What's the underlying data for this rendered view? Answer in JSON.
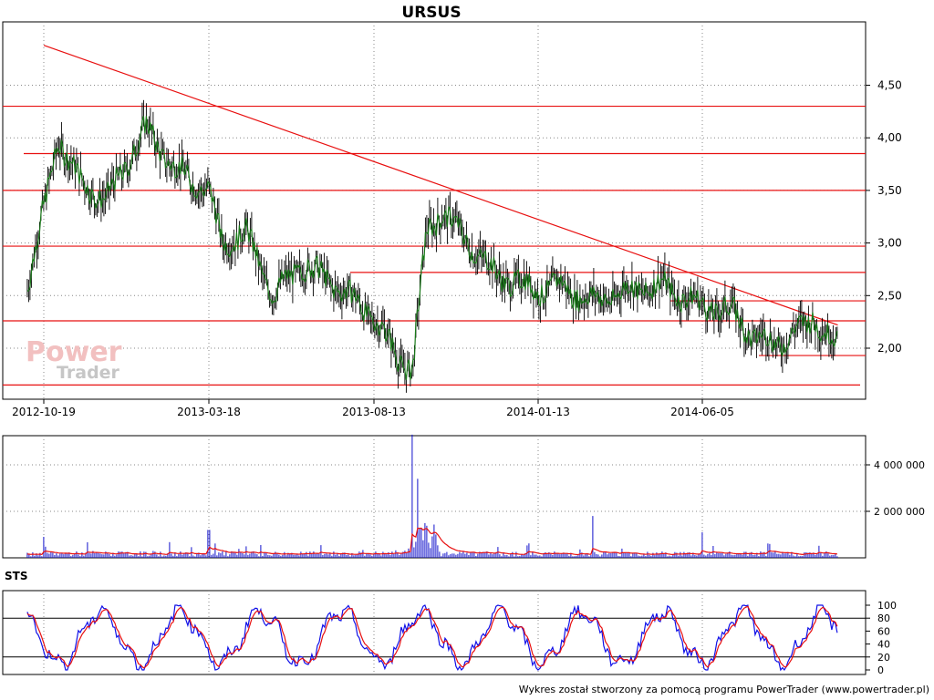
{
  "chart_data": [
    {
      "type": "line",
      "title": "URSUS",
      "x_ticks": [
        "2012-10-19",
        "2013-03-18",
        "2013-08-13",
        "2014-01-13",
        "2014-06-05"
      ],
      "y_ticks": [
        "4,50",
        "4,00",
        "3,50",
        "3,00",
        "2,50",
        "2,00"
      ],
      "ylim": [
        1.6,
        4.95
      ],
      "grid": true,
      "series": [
        {
          "x": [
            "2012-10-04",
            "2012-10-19",
            "2012-11-01",
            "2012-11-20",
            "2012-12-15",
            "2013-01-20",
            "2013-02-15",
            "2013-03-18",
            "2013-03-30",
            "2013-04-20",
            "2013-05-15",
            "2013-06-10",
            "2013-07-10",
            "2013-08-13",
            "2013-09-05",
            "2013-09-18",
            "2013-09-25",
            "2013-10-01",
            "2013-10-15",
            "2013-11-10",
            "2013-12-05",
            "2014-01-13",
            "2014-02-01",
            "2014-03-01",
            "2014-04-01",
            "2014-05-01",
            "2014-06-05",
            "2014-07-01",
            "2014-07-20",
            "2014-08-10",
            "2014-09-01",
            "2014-09-10",
            "2014-10-01"
          ],
          "values": [
            2.6,
            3.3,
            4.0,
            3.6,
            3.4,
            4.1,
            3.7,
            3.5,
            3.0,
            3.1,
            2.5,
            2.8,
            2.6,
            2.3,
            1.9,
            1.8,
            2.5,
            3.1,
            3.3,
            3.0,
            2.7,
            2.55,
            2.6,
            2.45,
            2.55,
            2.6,
            2.4,
            2.35,
            2.1,
            2.05,
            2.2,
            2.3,
            2.0
          ]
        }
      ],
      "resistance_levels": [
        4.3,
        3.85,
        3.5,
        2.97,
        2.72,
        2.45,
        2.26,
        1.93,
        1.65
      ]
    },
    {
      "type": "bar",
      "y_ticks": [
        "4 000 000",
        "2 000 000"
      ],
      "ylim": [
        0,
        5300000
      ],
      "spikes": [
        {
          "x": "2012-10-19",
          "value": 900000
        },
        {
          "x": "2013-03-18",
          "value": 1200000
        },
        {
          "x": "2013-09-18",
          "value": 5300000
        },
        {
          "x": "2013-09-22",
          "value": 3400000
        },
        {
          "x": "2014-03-01",
          "value": 1800000
        },
        {
          "x": "2014-06-05",
          "value": 1100000
        }
      ]
    },
    {
      "type": "line",
      "title": "STS",
      "y_ticks": [
        "100",
        "80",
        "60",
        "40",
        "20",
        "0"
      ],
      "ylim": [
        0,
        100
      ],
      "reference_lines": [
        80,
        20
      ]
    }
  ],
  "watermark": {
    "line1": "Power",
    "line2": "Trader"
  },
  "footer": "Wykres został stworzony za pomocą programu PowerTrader (www.powertrader.pl)",
  "colors": {
    "price_green": "#1a7a1a",
    "trend_red": "#e81010",
    "volume_blue": "#1010cc",
    "sts_blue": "#1010e8",
    "sts_red": "#e81010"
  }
}
